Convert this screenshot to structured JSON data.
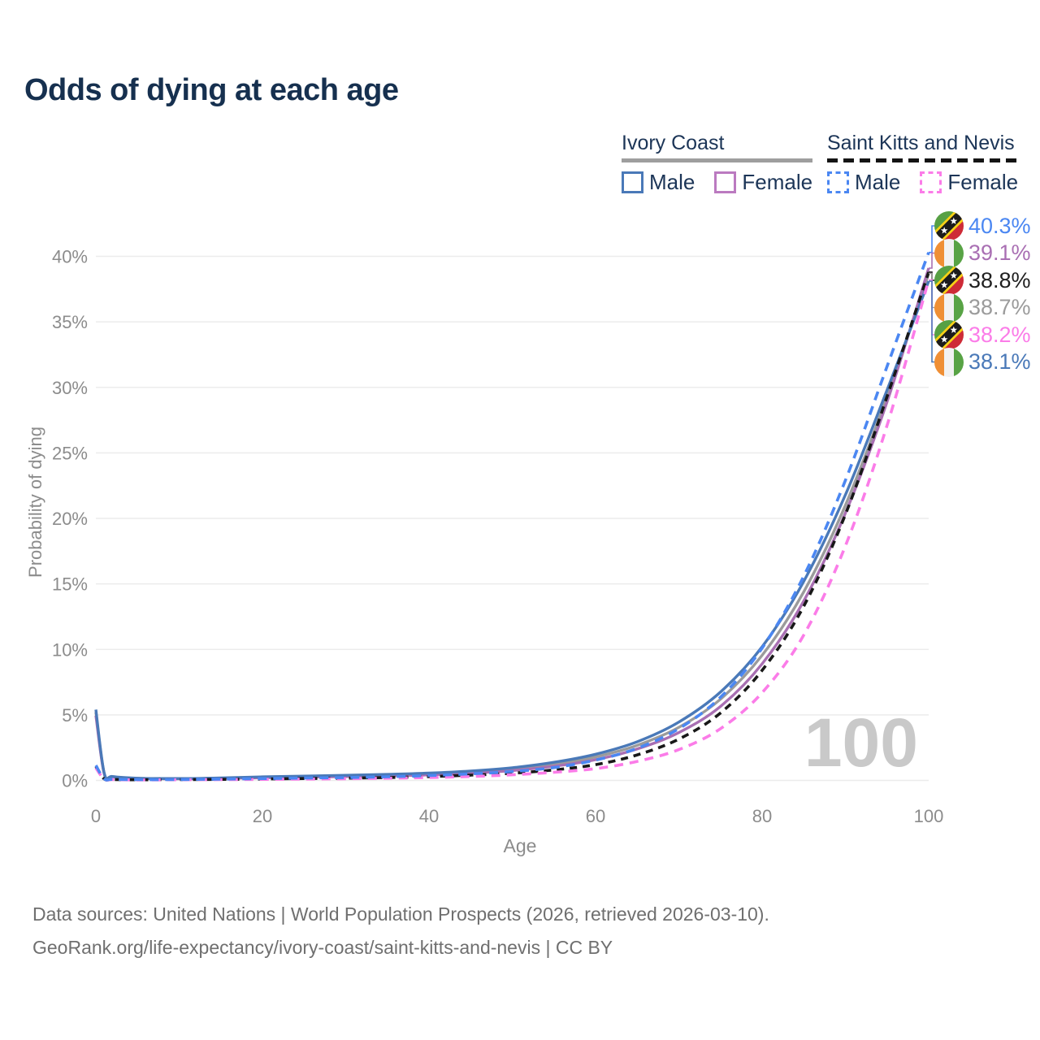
{
  "title": "Odds of dying at each age",
  "legend": {
    "groups": [
      {
        "label": "Ivory Coast",
        "line_style": "solid",
        "underline_color": "#9e9e9e",
        "items": [
          {
            "label": "Male",
            "color": "#4a79b8",
            "dashed": false
          },
          {
            "label": "Female",
            "color": "#bb7ac0",
            "dashed": false
          }
        ]
      },
      {
        "label": "Saint Kitts and Nevis",
        "line_style": "dashed",
        "underline_color": "#141414",
        "items": [
          {
            "label": "Male",
            "color": "#4b87f2",
            "dashed": true
          },
          {
            "label": "Female",
            "color": "#fb7ce8",
            "dashed": true
          }
        ]
      }
    ]
  },
  "chart_data": {
    "type": "line",
    "title": "Odds of dying at each age",
    "xlabel": "Age",
    "ylabel": "Probability of dying",
    "xlim": [
      0,
      100
    ],
    "ylim_percent": [
      0,
      43
    ],
    "x_ticks": [
      0,
      20,
      40,
      60,
      80,
      100
    ],
    "y_ticks_percent": [
      0,
      5,
      10,
      15,
      20,
      25,
      30,
      35,
      40
    ],
    "grid": "horizontal",
    "legend_position": "top-right",
    "series": [
      {
        "id": "ic-male",
        "name": "Ivory Coast — Male",
        "country": "Ivory Coast",
        "sex": "male",
        "color": "#4a79b8",
        "dashed": false,
        "end_label": "38.1%",
        "points": [
          [
            0,
            5.4
          ],
          [
            1,
            0.55
          ],
          [
            2,
            0.3
          ],
          [
            5,
            0.17
          ],
          [
            10,
            0.14
          ],
          [
            15,
            0.19
          ],
          [
            20,
            0.27
          ],
          [
            25,
            0.33
          ],
          [
            30,
            0.39
          ],
          [
            35,
            0.46
          ],
          [
            40,
            0.56
          ],
          [
            45,
            0.72
          ],
          [
            50,
            0.97
          ],
          [
            55,
            1.38
          ],
          [
            60,
            2.0
          ],
          [
            65,
            2.95
          ],
          [
            70,
            4.45
          ],
          [
            75,
            6.75
          ],
          [
            80,
            10.2
          ],
          [
            85,
            15.2
          ],
          [
            90,
            21.8
          ],
          [
            95,
            29.8
          ],
          [
            100,
            38.1
          ]
        ]
      },
      {
        "id": "ic-female",
        "name": "Ivory Coast — Female",
        "country": "Ivory Coast",
        "sex": "female",
        "color": "#a96fb3",
        "dashed": false,
        "end_label": "39.1%",
        "points": [
          [
            0,
            4.95
          ],
          [
            1,
            0.5
          ],
          [
            2,
            0.27
          ],
          [
            5,
            0.15
          ],
          [
            10,
            0.12
          ],
          [
            15,
            0.15
          ],
          [
            20,
            0.2
          ],
          [
            25,
            0.25
          ],
          [
            30,
            0.29
          ],
          [
            35,
            0.34
          ],
          [
            40,
            0.42
          ],
          [
            45,
            0.55
          ],
          [
            50,
            0.75
          ],
          [
            55,
            1.08
          ],
          [
            60,
            1.58
          ],
          [
            65,
            2.4
          ],
          [
            70,
            3.65
          ],
          [
            75,
            5.65
          ],
          [
            80,
            8.9
          ],
          [
            85,
            13.7
          ],
          [
            90,
            20.4
          ],
          [
            95,
            28.9
          ],
          [
            100,
            39.1
          ]
        ]
      },
      {
        "id": "ic-total",
        "name": "Ivory Coast — Both sexes",
        "country": "Ivory Coast",
        "sex": "both",
        "color": "#9b9b9b",
        "dashed": false,
        "end_label": "38.7%",
        "points": [
          [
            0,
            5.2
          ],
          [
            1,
            0.52
          ],
          [
            2,
            0.28
          ],
          [
            5,
            0.16
          ],
          [
            10,
            0.13
          ],
          [
            15,
            0.17
          ],
          [
            20,
            0.24
          ],
          [
            25,
            0.29
          ],
          [
            30,
            0.34
          ],
          [
            35,
            0.4
          ],
          [
            40,
            0.49
          ],
          [
            45,
            0.63
          ],
          [
            50,
            0.86
          ],
          [
            55,
            1.23
          ],
          [
            60,
            1.79
          ],
          [
            65,
            2.68
          ],
          [
            70,
            4.05
          ],
          [
            75,
            6.2
          ],
          [
            80,
            9.55
          ],
          [
            85,
            14.4
          ],
          [
            90,
            21.0
          ],
          [
            95,
            29.3
          ],
          [
            100,
            38.7
          ]
        ]
      },
      {
        "id": "skn-male",
        "name": "Saint Kitts and Nevis — Male",
        "country": "Saint Kitts and Nevis",
        "sex": "male",
        "color": "#4b87f2",
        "dashed": true,
        "end_label": "40.3%",
        "points": [
          [
            0,
            1.15
          ],
          [
            1,
            0.12
          ],
          [
            2,
            0.08
          ],
          [
            5,
            0.06
          ],
          [
            10,
            0.07
          ],
          [
            15,
            0.1
          ],
          [
            20,
            0.14
          ],
          [
            25,
            0.18
          ],
          [
            30,
            0.22
          ],
          [
            35,
            0.28
          ],
          [
            40,
            0.37
          ],
          [
            45,
            0.5
          ],
          [
            50,
            0.68
          ],
          [
            55,
            0.98
          ],
          [
            60,
            1.55
          ],
          [
            65,
            2.45
          ],
          [
            70,
            3.95
          ],
          [
            75,
            6.35
          ],
          [
            80,
            10.1
          ],
          [
            85,
            15.6
          ],
          [
            90,
            22.9
          ],
          [
            95,
            31.6
          ],
          [
            100,
            40.3
          ]
        ]
      },
      {
        "id": "skn-female",
        "name": "Saint Kitts and Nevis — Female",
        "country": "Saint Kitts and Nevis",
        "sex": "female",
        "color": "#fb7ce8",
        "dashed": true,
        "end_label": "38.2%",
        "points": [
          [
            0,
            0.95
          ],
          [
            1,
            0.1
          ],
          [
            2,
            0.06
          ],
          [
            5,
            0.04
          ],
          [
            10,
            0.05
          ],
          [
            15,
            0.06
          ],
          [
            20,
            0.08
          ],
          [
            25,
            0.1
          ],
          [
            30,
            0.13
          ],
          [
            35,
            0.17
          ],
          [
            40,
            0.22
          ],
          [
            45,
            0.3
          ],
          [
            50,
            0.43
          ],
          [
            55,
            0.62
          ],
          [
            60,
            0.9
          ],
          [
            65,
            1.45
          ],
          [
            70,
            2.35
          ],
          [
            75,
            3.95
          ],
          [
            80,
            6.7
          ],
          [
            85,
            11.1
          ],
          [
            90,
            17.9
          ],
          [
            95,
            27.1
          ],
          [
            100,
            38.2
          ]
        ]
      },
      {
        "id": "skn-total",
        "name": "Saint Kitts and Nevis — Both sexes",
        "country": "Saint Kitts and Nevis",
        "sex": "both",
        "color": "#181818",
        "dashed": true,
        "end_label": "38.8%",
        "points": [
          [
            0,
            1.05
          ],
          [
            1,
            0.11
          ],
          [
            2,
            0.07
          ],
          [
            5,
            0.05
          ],
          [
            10,
            0.06
          ],
          [
            15,
            0.08
          ],
          [
            20,
            0.11
          ],
          [
            25,
            0.14
          ],
          [
            30,
            0.17
          ],
          [
            35,
            0.22
          ],
          [
            40,
            0.29
          ],
          [
            45,
            0.4
          ],
          [
            50,
            0.55
          ],
          [
            55,
            0.8
          ],
          [
            60,
            1.2
          ],
          [
            65,
            1.95
          ],
          [
            70,
            3.15
          ],
          [
            75,
            5.15
          ],
          [
            80,
            8.4
          ],
          [
            85,
            13.3
          ],
          [
            90,
            20.3
          ],
          [
            95,
            29.3
          ],
          [
            100,
            38.8
          ]
        ]
      }
    ]
  },
  "end_labels": [
    {
      "series": "skn-male",
      "flag": "kn",
      "value": "40.3%",
      "color": "#4b87f2"
    },
    {
      "series": "ic-female",
      "flag": "ci",
      "value": "39.1%",
      "color": "#a96fb3"
    },
    {
      "series": "skn-total",
      "flag": "kn",
      "value": "38.8%",
      "color": "#1f1f1f"
    },
    {
      "series": "ic-total",
      "flag": "ci",
      "value": "38.7%",
      "color": "#9b9b9b"
    },
    {
      "series": "skn-female",
      "flag": "kn",
      "value": "38.2%",
      "color": "#fb7ce8"
    },
    {
      "series": "ic-male",
      "flag": "ci",
      "value": "38.1%",
      "color": "#4a79b8"
    }
  ],
  "watermark": "100",
  "footer": {
    "line1": "Data sources: United Nations | World Population Prospects (2026, retrieved 2026-03-10).",
    "line2": "GeoRank.org/life-expectancy/ivory-coast/saint-kitts-and-nevis | CC BY"
  }
}
